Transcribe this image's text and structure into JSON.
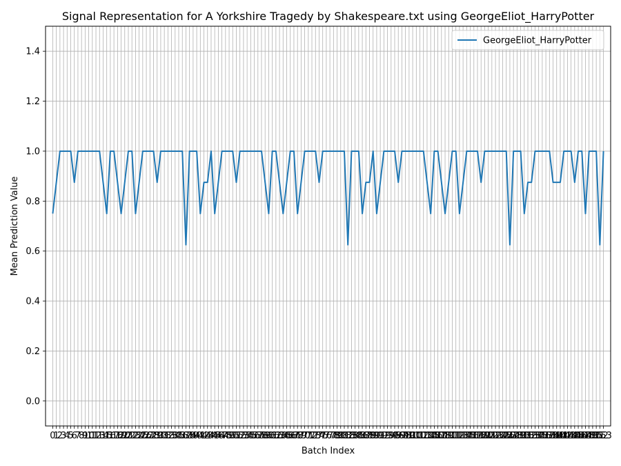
{
  "chart_data": {
    "type": "line",
    "title": "Signal Representation for A Yorkshire Tragedy by Shakespeare.txt using GeorgeEliot_HarryPotter",
    "xlabel": "Batch Index",
    "ylabel": "Mean Prediction Value",
    "ylim": [
      -0.1,
      1.5
    ],
    "xlim": [
      -2.0,
      155.0
    ],
    "yticks": [
      0.0,
      0.2,
      0.4,
      0.6,
      0.8,
      1.0,
      1.2,
      1.4
    ],
    "ytick_labels": [
      "0.0",
      "0.2",
      "0.4",
      "0.6",
      "0.8",
      "1.0",
      "1.2",
      "1.4"
    ],
    "grid": true,
    "legend_position": "top-right",
    "line_color": "#1f77b4",
    "series": [
      {
        "name": "GeorgeEliot_HarryPotter",
        "x": [
          0,
          1,
          2,
          3,
          4,
          5,
          6,
          7,
          8,
          9,
          10,
          11,
          12,
          13,
          14,
          15,
          16,
          17,
          18,
          19,
          20,
          21,
          22,
          23,
          24,
          25,
          26,
          27,
          28,
          29,
          30,
          31,
          32,
          33,
          34,
          35,
          36,
          37,
          38,
          39,
          40,
          41,
          42,
          43,
          44,
          45,
          46,
          47,
          48,
          49,
          50,
          51,
          52,
          53,
          54,
          55,
          56,
          57,
          58,
          59,
          60,
          61,
          62,
          63,
          64,
          65,
          66,
          67,
          68,
          69,
          70,
          71,
          72,
          73,
          74,
          75,
          76,
          77,
          78,
          79,
          80,
          81,
          82,
          83,
          84,
          85,
          86,
          87,
          88,
          89,
          90,
          91,
          92,
          93,
          94,
          95,
          96,
          97,
          98,
          99,
          100,
          101,
          102,
          103,
          104,
          105,
          106,
          107,
          108,
          109,
          110,
          111,
          112,
          113,
          114,
          115,
          116,
          117,
          118,
          119,
          120,
          121,
          122,
          123,
          124,
          125,
          126,
          127,
          128,
          129,
          130,
          131,
          132,
          133,
          134,
          135,
          136,
          137,
          138,
          139,
          140,
          141,
          142,
          143,
          144,
          145,
          146,
          147,
          148,
          149,
          150,
          151,
          152,
          153
        ],
        "values": [
          0.75,
          0.875,
          1.0,
          1.0,
          1.0,
          1.0,
          0.875,
          1.0,
          1.0,
          1.0,
          1.0,
          1.0,
          1.0,
          1.0,
          0.875,
          0.75,
          1.0,
          1.0,
          0.875,
          0.75,
          0.875,
          1.0,
          1.0,
          0.75,
          0.875,
          1.0,
          1.0,
          1.0,
          1.0,
          0.875,
          1.0,
          1.0,
          1.0,
          1.0,
          1.0,
          1.0,
          1.0,
          0.625,
          1.0,
          1.0,
          1.0,
          0.75,
          0.875,
          0.875,
          1.0,
          0.75,
          0.875,
          1.0,
          1.0,
          1.0,
          1.0,
          0.875,
          1.0,
          1.0,
          1.0,
          1.0,
          1.0,
          1.0,
          1.0,
          0.875,
          0.75,
          1.0,
          1.0,
          0.875,
          0.75,
          0.875,
          1.0,
          1.0,
          0.75,
          0.875,
          1.0,
          1.0,
          1.0,
          1.0,
          0.875,
          1.0,
          1.0,
          1.0,
          1.0,
          1.0,
          1.0,
          1.0,
          0.625,
          1.0,
          1.0,
          1.0,
          0.75,
          0.875,
          0.875,
          1.0,
          0.75,
          0.875,
          1.0,
          1.0,
          1.0,
          1.0,
          0.875,
          1.0,
          1.0,
          1.0,
          1.0,
          1.0,
          1.0,
          1.0,
          0.875,
          0.75,
          1.0,
          1.0,
          0.875,
          0.75,
          0.875,
          1.0,
          1.0,
          0.75,
          0.875,
          1.0,
          1.0,
          1.0,
          1.0,
          0.875,
          1.0,
          1.0,
          1.0,
          1.0,
          1.0,
          1.0,
          1.0,
          0.625,
          1.0,
          1.0,
          1.0,
          0.75,
          0.875,
          0.875,
          1.0,
          1.0,
          1.0,
          1.0,
          1.0,
          0.875,
          0.875,
          0.875,
          1.0,
          1.0,
          1.0,
          0.875,
          1.0,
          1.0,
          0.75,
          1.0,
          1.0,
          1.0,
          0.625,
          1.0
        ]
      }
    ]
  }
}
